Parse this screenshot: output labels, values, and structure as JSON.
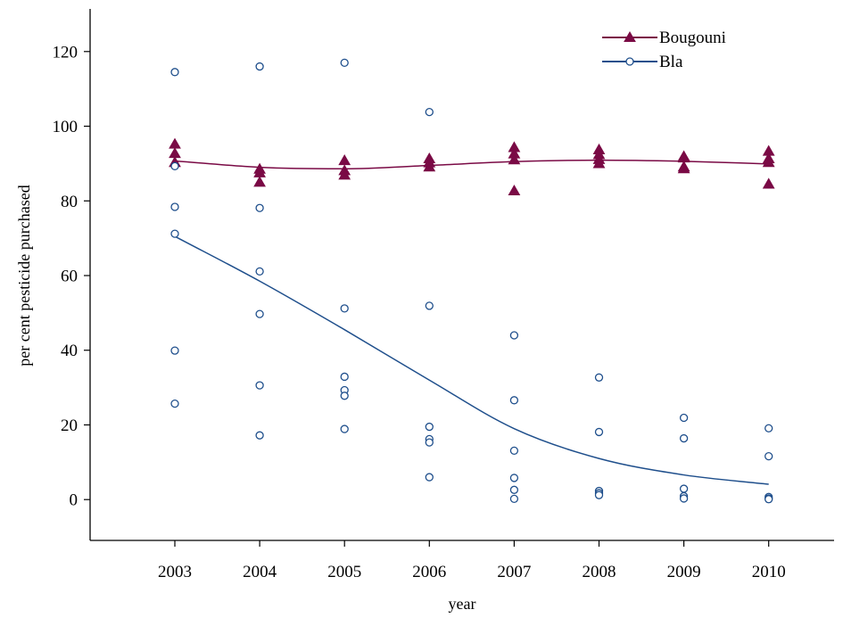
{
  "chart_data": {
    "type": "scatter",
    "title": "",
    "xlabel": "year",
    "ylabel": "per cent pesticide purchased",
    "x_categories": [
      "2003",
      "2004",
      "2005",
      "2006",
      "2007",
      "2008",
      "2009",
      "2010"
    ],
    "ylim": [
      -11,
      131
    ],
    "yticks": [
      0,
      20,
      40,
      60,
      80,
      100,
      120
    ],
    "grid": false,
    "legend_position": "top-right",
    "series": [
      {
        "name": "Bougouni",
        "color": "#7a0a45",
        "marker": "triangle-filled",
        "points": [
          {
            "x": "2003",
            "y": 95.2
          },
          {
            "x": "2003",
            "y": 92.7
          },
          {
            "x": "2003",
            "y": 90.3
          },
          {
            "x": "2004",
            "y": 88.5
          },
          {
            "x": "2004",
            "y": 87.5
          },
          {
            "x": "2004",
            "y": 85.0
          },
          {
            "x": "2005",
            "y": 90.8
          },
          {
            "x": "2005",
            "y": 88.1
          },
          {
            "x": "2005",
            "y": 86.9
          },
          {
            "x": "2006",
            "y": 91.3
          },
          {
            "x": "2006",
            "y": 90.2
          },
          {
            "x": "2006",
            "y": 89.1
          },
          {
            "x": "2007",
            "y": 94.3
          },
          {
            "x": "2007",
            "y": 92.6
          },
          {
            "x": "2007",
            "y": 91.0
          },
          {
            "x": "2007",
            "y": 82.7
          },
          {
            "x": "2008",
            "y": 93.7
          },
          {
            "x": "2008",
            "y": 92.4
          },
          {
            "x": "2008",
            "y": 91.1
          },
          {
            "x": "2008",
            "y": 90.0
          },
          {
            "x": "2009",
            "y": 91.9
          },
          {
            "x": "2009",
            "y": 91.5
          },
          {
            "x": "2009",
            "y": 89.1
          },
          {
            "x": "2009",
            "y": 88.6
          },
          {
            "x": "2010",
            "y": 93.3
          },
          {
            "x": "2010",
            "y": 91.3
          },
          {
            "x": "2010",
            "y": 90.3
          },
          {
            "x": "2010",
            "y": 84.5
          }
        ],
        "trend": [
          {
            "x": "2003",
            "y": 90.7
          },
          {
            "x": "2004",
            "y": 89.0
          },
          {
            "x": "2005",
            "y": 88.6
          },
          {
            "x": "2006",
            "y": 89.5
          },
          {
            "x": "2007",
            "y": 90.5
          },
          {
            "x": "2008",
            "y": 90.9
          },
          {
            "x": "2009",
            "y": 90.6
          },
          {
            "x": "2010",
            "y": 89.9
          }
        ]
      },
      {
        "name": "Bla",
        "color": "#1f4f8c",
        "marker": "circle-open",
        "points": [
          {
            "x": "2003",
            "y": 114.5
          },
          {
            "x": "2003",
            "y": 89.3
          },
          {
            "x": "2003",
            "y": 78.4
          },
          {
            "x": "2003",
            "y": 71.2
          },
          {
            "x": "2003",
            "y": 39.9
          },
          {
            "x": "2003",
            "y": 25.7
          },
          {
            "x": "2004",
            "y": 116.0
          },
          {
            "x": "2004",
            "y": 78.1
          },
          {
            "x": "2004",
            "y": 61.1
          },
          {
            "x": "2004",
            "y": 49.7
          },
          {
            "x": "2004",
            "y": 30.6
          },
          {
            "x": "2004",
            "y": 17.2
          },
          {
            "x": "2005",
            "y": 117.0
          },
          {
            "x": "2005",
            "y": 51.2
          },
          {
            "x": "2005",
            "y": 32.9
          },
          {
            "x": "2005",
            "y": 29.3
          },
          {
            "x": "2005",
            "y": 27.8
          },
          {
            "x": "2005",
            "y": 18.9
          },
          {
            "x": "2006",
            "y": 103.8
          },
          {
            "x": "2006",
            "y": 51.9
          },
          {
            "x": "2006",
            "y": 19.5
          },
          {
            "x": "2006",
            "y": 16.2
          },
          {
            "x": "2006",
            "y": 15.3
          },
          {
            "x": "2006",
            "y": 6.0
          },
          {
            "x": "2007",
            "y": 44.0
          },
          {
            "x": "2007",
            "y": 26.6
          },
          {
            "x": "2007",
            "y": 13.1
          },
          {
            "x": "2007",
            "y": 5.8
          },
          {
            "x": "2007",
            "y": 2.6
          },
          {
            "x": "2007",
            "y": 0.2
          },
          {
            "x": "2008",
            "y": 32.7
          },
          {
            "x": "2008",
            "y": 18.1
          },
          {
            "x": "2008",
            "y": 2.3
          },
          {
            "x": "2008",
            "y": 1.7
          },
          {
            "x": "2008",
            "y": 1.2
          },
          {
            "x": "2009",
            "y": 21.9
          },
          {
            "x": "2009",
            "y": 16.4
          },
          {
            "x": "2009",
            "y": 2.9
          },
          {
            "x": "2009",
            "y": 0.9
          },
          {
            "x": "2009",
            "y": 0.3
          },
          {
            "x": "2010",
            "y": 19.1
          },
          {
            "x": "2010",
            "y": 11.6
          },
          {
            "x": "2010",
            "y": 0.7
          },
          {
            "x": "2010",
            "y": 0.3
          },
          {
            "x": "2010",
            "y": 0.1
          }
        ],
        "trend": [
          {
            "x": "2003",
            "y": 70.5
          },
          {
            "x": "2004",
            "y": 58.5
          },
          {
            "x": "2005",
            "y": 45.5
          },
          {
            "x": "2006",
            "y": 32.0
          },
          {
            "x": "2007",
            "y": 19.0
          },
          {
            "x": "2008",
            "y": 11.0
          },
          {
            "x": "2009",
            "y": 6.6
          },
          {
            "x": "2010",
            "y": 4.1
          }
        ]
      }
    ]
  }
}
